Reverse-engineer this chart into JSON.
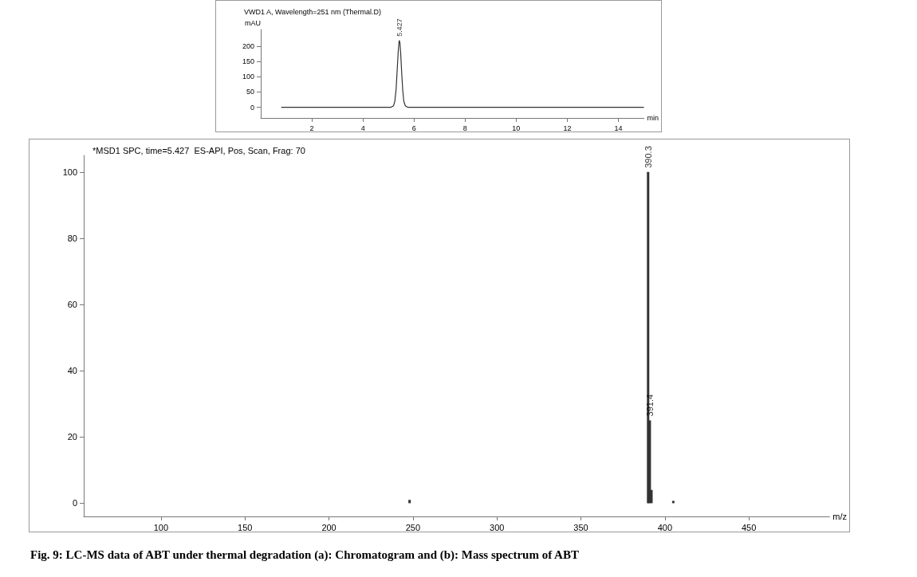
{
  "chart_data": [
    {
      "type": "line",
      "title": "VWD1 A, Wavelength=251 nm (Thermal.D)",
      "xlabel": "min",
      "ylabel": "mAU",
      "series": [
        {
          "color": "#333333",
          "x": [
            0.8,
            2,
            3.4,
            5.1,
            5.2,
            5.25,
            5.3,
            5.34,
            5.38,
            5.41,
            5.427,
            5.45,
            5.48,
            5.52,
            5.56,
            5.6,
            5.66,
            5.75,
            6.5,
            10,
            15
          ],
          "values": [
            0,
            0,
            0,
            0,
            5,
            20,
            60,
            120,
            180,
            212,
            219,
            210,
            175,
            110,
            55,
            20,
            5,
            0,
            0,
            0,
            0
          ]
        }
      ],
      "xlim": [
        0,
        15
      ],
      "xticks": [
        2,
        4,
        6,
        8,
        10,
        12,
        14
      ],
      "ylim": [
        -35,
        255
      ],
      "yticks": [
        0,
        50,
        100,
        150,
        200
      ],
      "annotations": [
        {
          "text": "5.427",
          "x": 5.427,
          "y": 219
        }
      ],
      "grid": false,
      "marker": "none",
      "line_style": "solid"
    },
    {
      "type": "bar",
      "title": "*MSD1 SPC, time=5.427  ES-API, Pos, Scan, Frag: 70",
      "xlabel": "m/z",
      "x": [
        248,
        390,
        391,
        392,
        405
      ],
      "values": [
        1,
        100,
        25,
        4,
        0.7
      ],
      "color": "#333333",
      "xlim": [
        54,
        498
      ],
      "xticks": [
        100,
        150,
        200,
        250,
        300,
        350,
        400,
        450
      ],
      "ylim": [
        -4,
        105
      ],
      "yticks": [
        0,
        20,
        40,
        60,
        80,
        100
      ],
      "annotations": [
        {
          "text": "390.3",
          "x": 390,
          "y": 100
        },
        {
          "text": "391.4",
          "x": 391,
          "y": 25
        },
        "Fig. 9: LC-MS data of ABT under thermal degradation (a): Chromatogram and (b): Mass spectrum of ABT"
      ],
      "grid": false
    }
  ]
}
